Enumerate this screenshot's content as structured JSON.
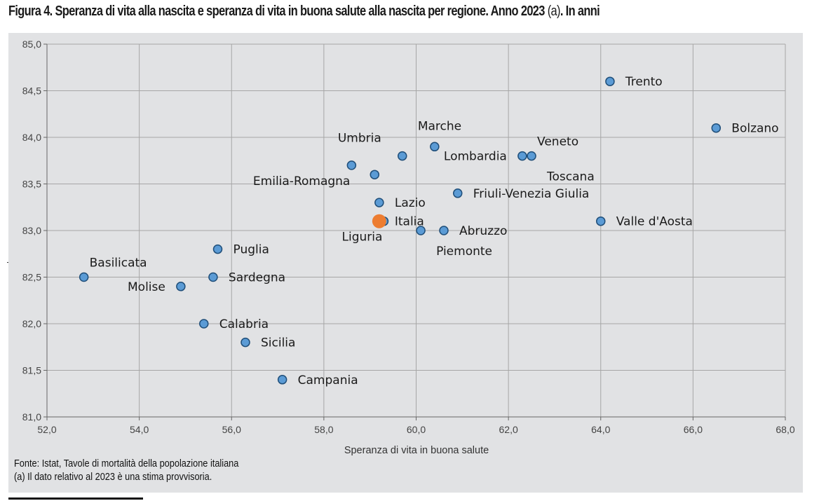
{
  "title": {
    "main": "Figura 4. Speranza di vita alla nascita e speranza di vita in buona salute alla nascita per regione. Anno 2023",
    "note": "(a)",
    "suffix": ". In anni"
  },
  "source": "Fonte: Istat, Tavole di mortalità della popolazione italiana",
  "footnote": "(a) Il dato relativo al 2023 è una stima provvisoria.",
  "colors": {
    "point_fill": "#5b9bd5",
    "point_stroke": "#1f4e79",
    "highlight_fill": "#ed7d31",
    "grid": "#a6a6a6",
    "plot_background": "#e1e2e4"
  },
  "chart_data": {
    "type": "scatter",
    "xlabel": "Speranza di vita in buona salute",
    "ylabel": "",
    "xlim": [
      52,
      68
    ],
    "ylim": [
      81,
      85
    ],
    "x_ticks": [
      "52,0",
      "54,0",
      "56,0",
      "58,0",
      "60,0",
      "62,0",
      "64,0",
      "66,0",
      "68,0"
    ],
    "y_ticks": [
      "81,0",
      "81,5",
      "82,0",
      "82,5",
      "83,0",
      "83,5",
      "84,0",
      "84,5",
      "85,0"
    ],
    "grid": true,
    "points": [
      {
        "label": "Trento",
        "x": 64.2,
        "y": 84.6,
        "pos": "right"
      },
      {
        "label": "Bolzano",
        "x": 66.5,
        "y": 84.1,
        "pos": "right"
      },
      {
        "label": "Marche",
        "x": 60.4,
        "y": 83.9,
        "pos": "above"
      },
      {
        "label": "Umbria",
        "x": 59.7,
        "y": 83.8,
        "pos": "above-left"
      },
      {
        "label": "Lombardia",
        "x": 62.3,
        "y": 83.8,
        "pos": "left"
      },
      {
        "label": "Veneto",
        "x": 62.5,
        "y": 83.8,
        "pos": "above-right"
      },
      {
        "label": "Toscana",
        "x": 62.5,
        "y": 83.8,
        "pos": "below-right"
      },
      {
        "label": "Emilia-Romagna",
        "x": 58.6,
        "y": 83.7,
        "pos": "below-left"
      },
      {
        "label": "",
        "x": 59.1,
        "y": 83.6,
        "pos": "none"
      },
      {
        "label": "Friuli-Venezia Giulia",
        "x": 60.9,
        "y": 83.4,
        "pos": "right"
      },
      {
        "label": "Lazio",
        "x": 59.2,
        "y": 83.3,
        "pos": "right"
      },
      {
        "label": "Italia",
        "x": 59.2,
        "y": 83.1,
        "pos": "right",
        "highlight": true
      },
      {
        "label": "Liguria",
        "x": 59.3,
        "y": 83.1,
        "pos": "below-left"
      },
      {
        "label": "Valle d'Aosta",
        "x": 64.0,
        "y": 83.1,
        "pos": "right"
      },
      {
        "label": "Piemonte",
        "x": 60.1,
        "y": 83.0,
        "pos": "below-right"
      },
      {
        "label": "Abruzzo",
        "x": 60.6,
        "y": 83.0,
        "pos": "right"
      },
      {
        "label": "Puglia",
        "x": 55.7,
        "y": 82.8,
        "pos": "right"
      },
      {
        "label": "Basilicata",
        "x": 52.8,
        "y": 82.5,
        "pos": "above-right"
      },
      {
        "label": "Sardegna",
        "x": 55.6,
        "y": 82.5,
        "pos": "right"
      },
      {
        "label": "Molise",
        "x": 54.9,
        "y": 82.4,
        "pos": "left"
      },
      {
        "label": "Calabria",
        "x": 55.4,
        "y": 82.0,
        "pos": "right"
      },
      {
        "label": "Sicilia",
        "x": 56.3,
        "y": 81.8,
        "pos": "right"
      },
      {
        "label": "Campania",
        "x": 57.1,
        "y": 81.4,
        "pos": "right"
      }
    ]
  }
}
